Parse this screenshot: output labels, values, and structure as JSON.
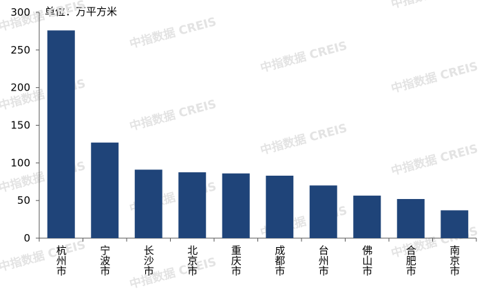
{
  "chart_data": {
    "type": "bar",
    "title": "单位：万平方米",
    "watermark": "中指数据 CREIS",
    "categories": [
      "杭州市",
      "宁波市",
      "长沙市",
      "北京市",
      "重庆市",
      "成都市",
      "台州市",
      "佛山市",
      "合肥市",
      "南京市"
    ],
    "values": [
      276,
      127,
      91,
      87.5,
      86,
      83,
      70,
      56.5,
      52,
      37
    ],
    "color": "#1f4479",
    "ylim": [
      0,
      300
    ],
    "yticks": [
      0,
      50,
      100,
      150,
      200,
      250,
      300
    ],
    "grid": false
  }
}
